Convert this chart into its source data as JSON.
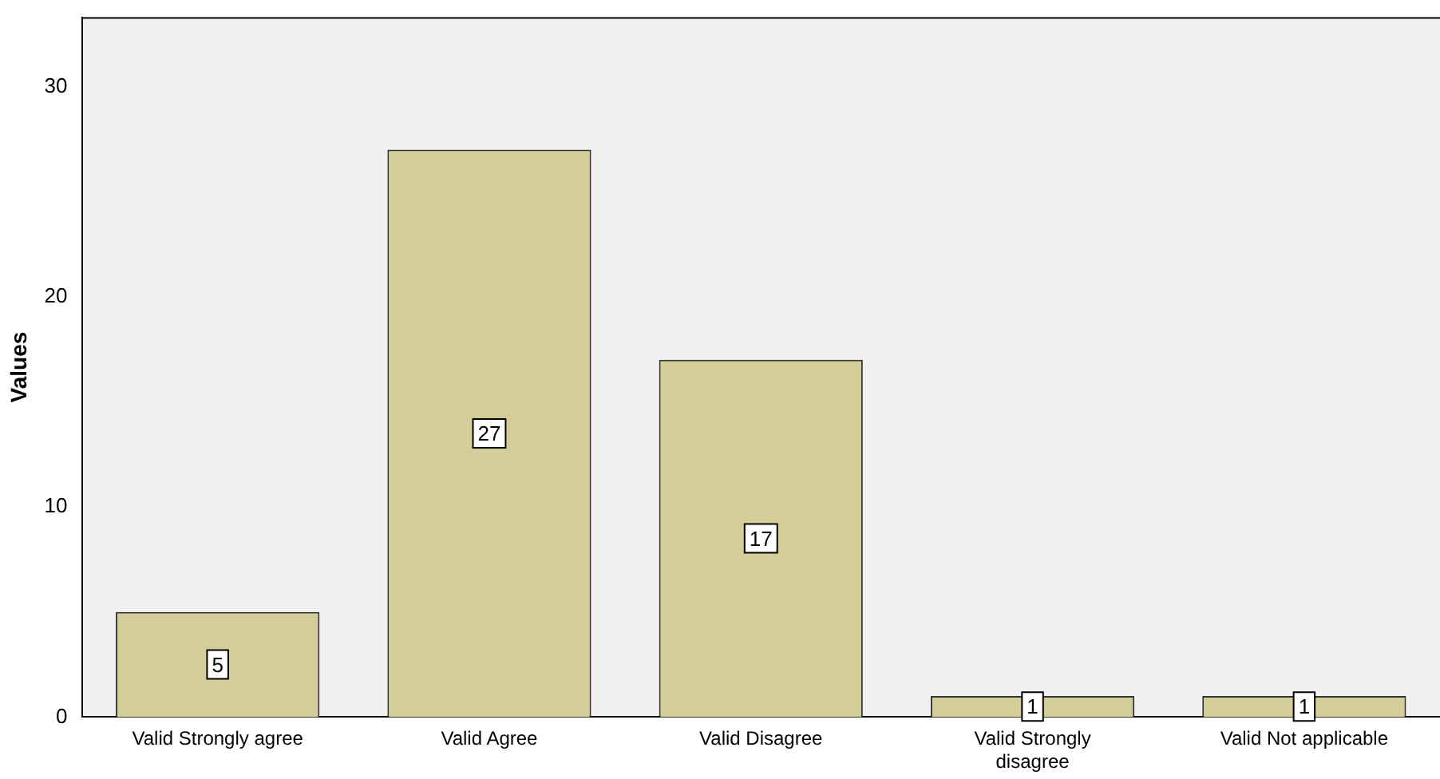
{
  "chart_data": {
    "type": "bar",
    "ylabel": "Values",
    "categories": [
      "Valid Strongly agree",
      "Valid Agree",
      "Valid Disagree",
      "Valid Strongly disagree",
      "Valid Not applicable"
    ],
    "values": [
      5,
      27,
      17,
      1,
      1
    ],
    "color": "#d3ce97",
    "ylim": [
      0,
      33.3
    ],
    "yticks": [
      0,
      10,
      20,
      30
    ],
    "grid": false,
    "data_labels": true
  }
}
